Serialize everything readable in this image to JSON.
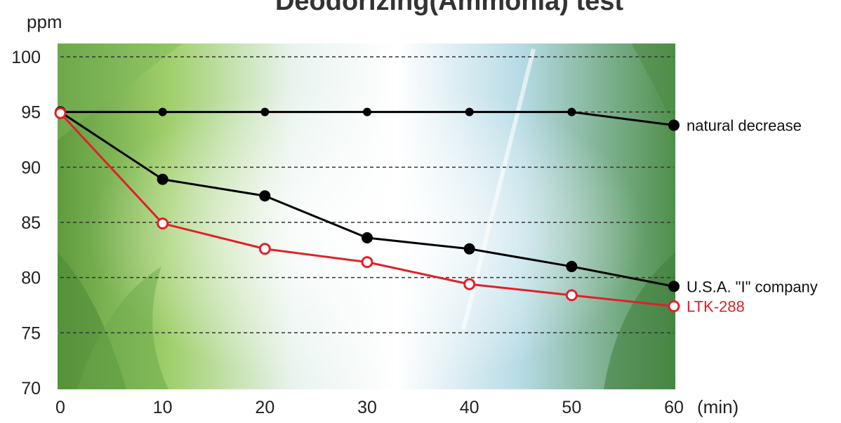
{
  "chart_data": {
    "type": "line",
    "title": "Deodorizing(Ammonia) test",
    "ylabel": "ppm",
    "xlabel": "(min)",
    "x": [
      0,
      10,
      20,
      30,
      40,
      50,
      60
    ],
    "ylim": [
      70,
      100
    ],
    "xlim": [
      0,
      60
    ],
    "y_ticks": [
      "70",
      "75",
      "80",
      "85",
      "90",
      "95",
      "100"
    ],
    "x_ticks": [
      "0",
      "10",
      "20",
      "30",
      "40",
      "50",
      "60"
    ],
    "grid": true,
    "series": [
      {
        "name": "natural decrease",
        "color": "#000000",
        "marker": "filled",
        "values": [
          95,
          95,
          95,
          95,
          95,
          95,
          93.8
        ]
      },
      {
        "name": "U.S.A. \"I\" company",
        "color": "#000000",
        "marker": "filled",
        "values": [
          95,
          88.9,
          87.4,
          83.6,
          82.6,
          81.0,
          79.2
        ]
      },
      {
        "name": "LTK-288",
        "color": "#e0202a",
        "marker": "open",
        "values": [
          94.9,
          84.9,
          82.6,
          81.4,
          79.4,
          78.4,
          77.4
        ]
      }
    ]
  }
}
